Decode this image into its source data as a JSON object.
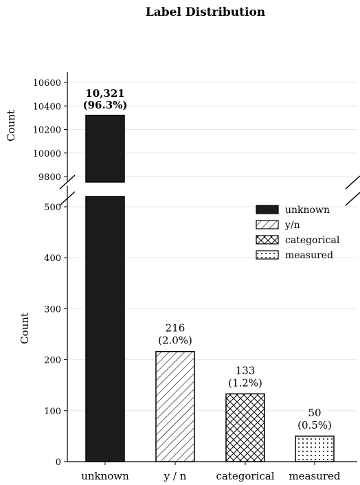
{
  "chart_data": {
    "type": "bar",
    "title": "Label Distribution",
    "categories": [
      "unknown",
      "y / n",
      "categorical",
      "measured"
    ],
    "values": [
      10321,
      216,
      133,
      50
    ],
    "percent_labels": [
      "(96.3%)",
      "(2.0%)",
      "(1.2%)",
      "(0.5%)"
    ],
    "count_labels": [
      "10,321",
      "216",
      "133",
      "50"
    ],
    "ylabel": "Count",
    "broken_axis": true,
    "upper_ylim": [
      9750,
      10700
    ],
    "upper_ticks": [
      9800,
      10000,
      10200,
      10400,
      10600
    ],
    "lower_ylim": [
      0,
      535
    ],
    "lower_ticks": [
      0,
      100,
      200,
      300,
      400,
      500
    ],
    "grid": "horizontal",
    "legend_position": "top-right",
    "legend": [
      "unknown",
      "y/n",
      "categorical",
      "measured"
    ],
    "fills": [
      "solid",
      "diagonal-hatch",
      "crosshatch",
      "dots"
    ],
    "colors": {
      "bar_dark": "#1c1c1c",
      "outline": "#000000",
      "grid": "#e6e6e6"
    }
  }
}
